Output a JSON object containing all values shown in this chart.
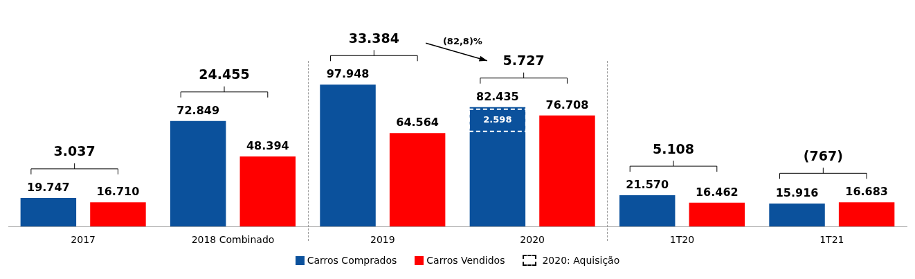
{
  "chart_data": {
    "type": "bar",
    "categories": [
      "2017",
      "2018 Combinado",
      "2019",
      "2020",
      "1T20",
      "1T21"
    ],
    "series": [
      {
        "name": "Carros Comprados",
        "color": "#0b519c",
        "values": [
          19747,
          72849,
          97948,
          82435,
          21570,
          15916
        ],
        "value_labels": [
          "19.747",
          "72.849",
          "97.948",
          "82.435",
          "21.570",
          "15.916"
        ]
      },
      {
        "name": "Carros Vendidos",
        "color": "#ff0000",
        "values": [
          16710,
          48394,
          64564,
          76708,
          16462,
          16683
        ],
        "value_labels": [
          "16.710",
          "48.394",
          "64.564",
          "76.708",
          "16.462",
          "16.683"
        ]
      }
    ],
    "annotations": [
      "3.037",
      "24.455",
      "33.384",
      "5.727",
      "5.108",
      "(767)",
      "(82,8)%",
      "2.598",
      "2020: Aquisição"
    ],
    "legend": "bottom",
    "grid": false
  }
}
